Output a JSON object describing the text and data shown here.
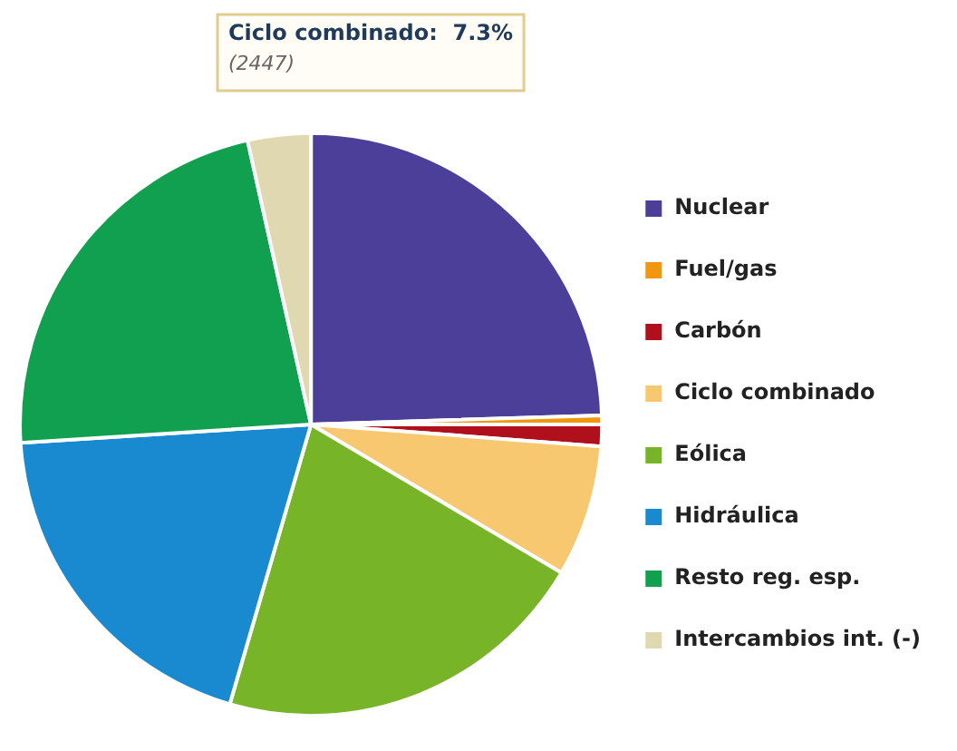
{
  "chart_data": {
    "type": "pie",
    "categories": [
      "Nuclear",
      "Fuel/gas",
      "Carbón",
      "Ciclo combinado",
      "Eólica",
      "Hidráulica",
      "Resto reg. esp.",
      "Intercambios int. (-)"
    ],
    "values": [
      24.5,
      0.5,
      1.2,
      7.3,
      21,
      19.5,
      22.5,
      3.5
    ],
    "colors": [
      "#4b3f9a",
      "#f0960f",
      "#b0101c",
      "#f8c870",
      "#78b428",
      "#1a8ad0",
      "#10a050",
      "#e0d8b0"
    ],
    "annotations": [
      "Ciclo combinado:  7.3%",
      "(2447)"
    ],
    "legend": "right"
  }
}
